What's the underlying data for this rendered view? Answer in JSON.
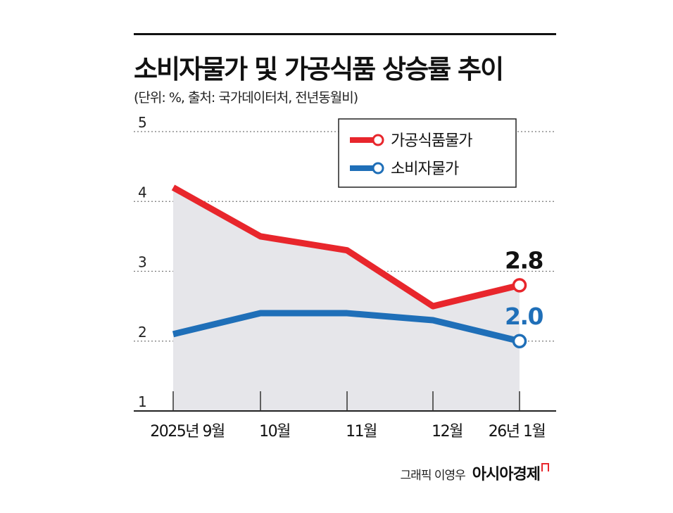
{
  "chart_data": {
    "type": "line",
    "title": "소비자물가 및 가공식품 상승률 추이",
    "subtitle": "(단위: %, 출처: 국가데이터처, 전년동월비)",
    "categories": [
      "2025년 9월",
      "10월",
      "11월",
      "12월",
      "26년 1월"
    ],
    "y_ticks": [
      "5",
      "4",
      "3",
      "2",
      "1"
    ],
    "ylim": [
      1,
      5
    ],
    "grid": "horizontal dotted",
    "legend_position": "top-right",
    "series": [
      {
        "name": "가공식품물가",
        "color": "#e8262c",
        "values": [
          4.2,
          3.5,
          3.3,
          2.5,
          2.8
        ],
        "end_label": "2.8"
      },
      {
        "name": "소비자물가",
        "color": "#1f6fb8",
        "values": [
          2.1,
          2.4,
          2.4,
          2.3,
          2.0
        ],
        "end_label": "2.0"
      }
    ],
    "fill_color": "#e6e6ea"
  },
  "footer": {
    "credit": "그래픽 이영우",
    "brand": "아시아경제"
  }
}
